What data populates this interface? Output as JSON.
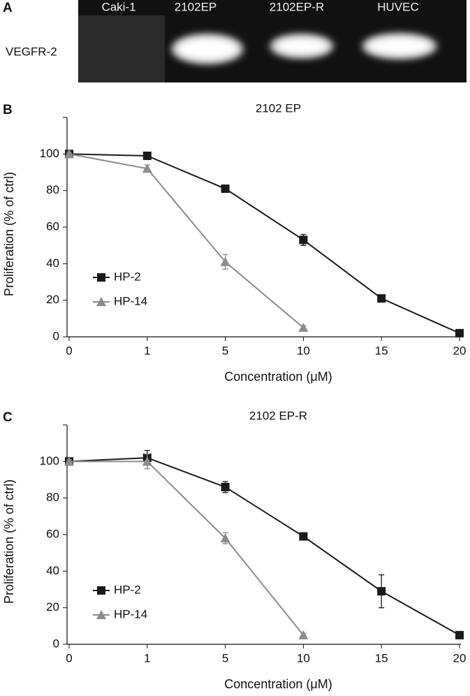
{
  "gel": {
    "panel_label": "A",
    "row_label": "VEGFR-2",
    "lanes": [
      "Caki-1",
      "2102EP",
      "2102EP-R",
      "HUVEC"
    ]
  },
  "chart_data": [
    {
      "type": "line",
      "panel_label": "B",
      "title": "2102 EP",
      "x_label": "Concentration (μM)",
      "y_label": "Proliferation (% of ctrl)",
      "categories": [
        "0",
        "1",
        "5",
        "10",
        "15",
        "20"
      ],
      "ylim": [
        0,
        120
      ],
      "yticks": [
        0,
        20,
        40,
        60,
        80,
        100
      ],
      "series": [
        {
          "name": "HP-2",
          "color": "#1a1a1a",
          "marker": "square",
          "values": [
            100,
            99,
            81,
            53,
            21,
            2
          ],
          "errors": [
            1,
            2,
            1,
            3,
            2,
            1
          ]
        },
        {
          "name": "HP-14",
          "color": "#8c8c8c",
          "marker": "triangle",
          "values": [
            100,
            92,
            41,
            5,
            null,
            null
          ],
          "errors": [
            1,
            2,
            4,
            1,
            null,
            null
          ]
        }
      ]
    },
    {
      "type": "line",
      "panel_label": "C",
      "title": "2102 EP-R",
      "x_label": "Concentration (μM)",
      "y_label": "Proliferation (% of ctrl)",
      "categories": [
        "0",
        "1",
        "5",
        "10",
        "15",
        "20"
      ],
      "ylim": [
        0,
        120
      ],
      "yticks": [
        0,
        20,
        40,
        60,
        80,
        100
      ],
      "series": [
        {
          "name": "HP-2",
          "color": "#1a1a1a",
          "marker": "square",
          "values": [
            100,
            102,
            86,
            59,
            29,
            5
          ],
          "errors": [
            1,
            4,
            3,
            1,
            9,
            1
          ]
        },
        {
          "name": "HP-14",
          "color": "#8c8c8c",
          "marker": "triangle",
          "values": [
            100,
            100,
            58,
            5,
            null,
            null
          ],
          "errors": [
            1,
            4,
            3,
            1,
            null,
            null
          ]
        }
      ]
    }
  ]
}
